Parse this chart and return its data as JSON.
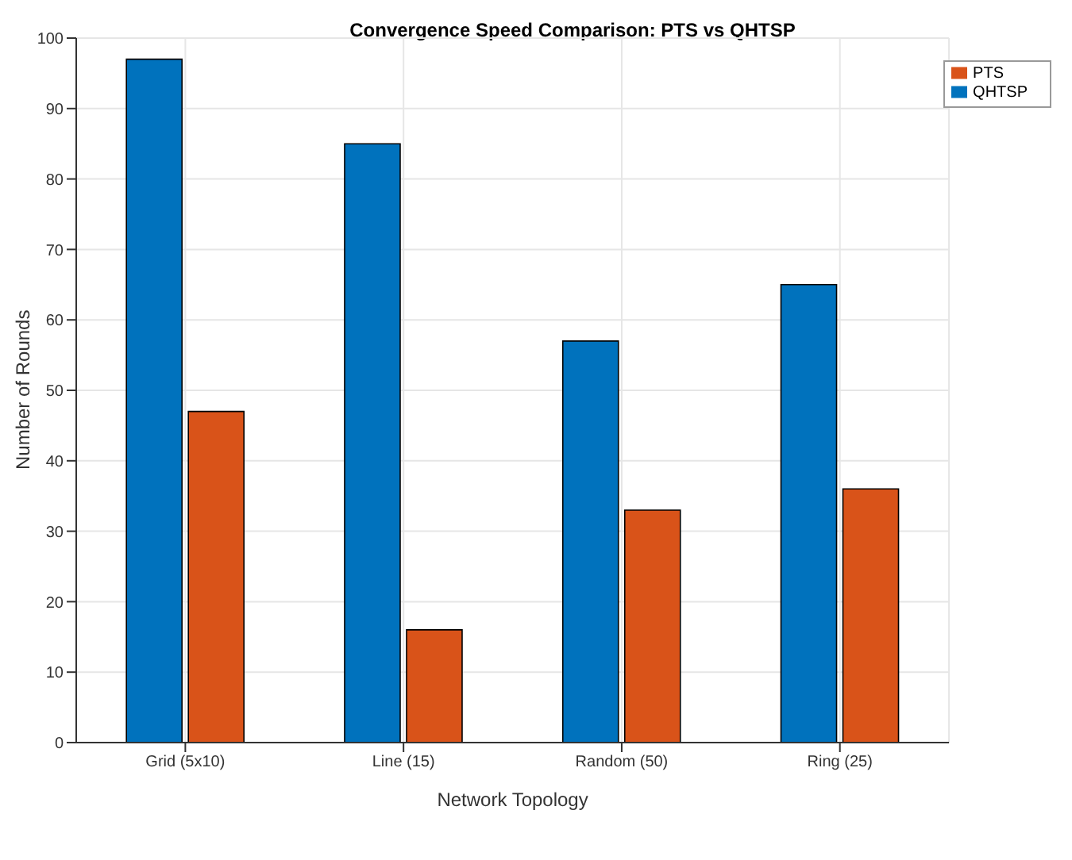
{
  "chart_data": {
    "type": "bar",
    "title": "Convergence Speed Comparison: PTS vs QHTSP",
    "xlabel": "Network Topology",
    "ylabel": "Number of Rounds",
    "categories": [
      "Grid (5x10)",
      "Line (15)",
      "Random (50)",
      "Ring (25)"
    ],
    "series": [
      {
        "name": "QHTSP",
        "color": "#0072bd",
        "values": [
          97,
          85,
          57,
          65
        ]
      },
      {
        "name": "PTS",
        "color": "#d95319",
        "values": [
          47,
          16,
          33,
          36
        ]
      }
    ],
    "ylim": [
      0,
      100
    ],
    "yticks": [
      0,
      10,
      20,
      30,
      40,
      50,
      60,
      70,
      80,
      90,
      100
    ],
    "grid": true,
    "legend": "top right"
  }
}
